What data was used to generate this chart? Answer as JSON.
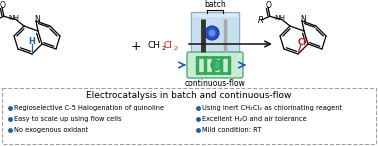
{
  "title": "Electrocatalysis in batch and continuous-flow",
  "bullet_left": [
    "Regioselective C-5 Halogenation of quinoline",
    "Easy to scale up using flow cells",
    "No exogenous oxidant"
  ],
  "bullet_right": [
    "Using inert CH₂Cl₂ as chlorinating reagent",
    "Excellent H₂O and air tolerance",
    "Mild condition: RT"
  ],
  "batch_label": "batch",
  "flow_label": "continuous-flow",
  "bg_color": "#ffffff",
  "bullet_color": "#1a5fa8",
  "box_border_color": "#888888",
  "blue_h_color": "#1a5fa8",
  "red_cl_color": "#dd1111",
  "red_cl2_color": "#dd1111",
  "arrow_color": "#222222"
}
